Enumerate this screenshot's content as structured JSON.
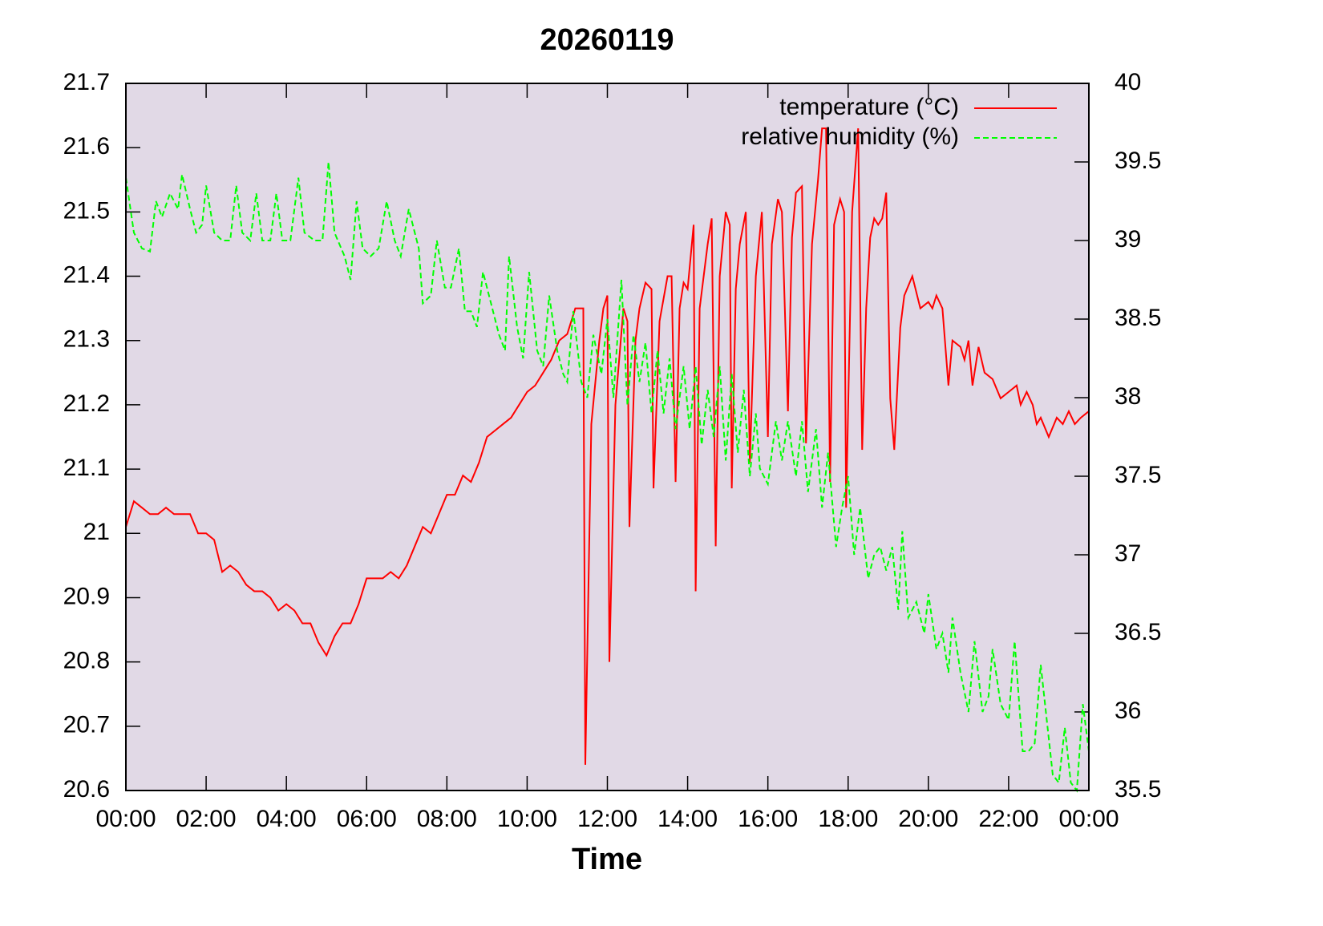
{
  "chart_data": {
    "type": "line",
    "title": "20260119",
    "x_label": "Time",
    "xlim": [
      0,
      24
    ],
    "xticks": [
      {
        "value": 0,
        "label": "00:00"
      },
      {
        "value": 2,
        "label": "02:00"
      },
      {
        "value": 4,
        "label": "04:00"
      },
      {
        "value": 6,
        "label": "06:00"
      },
      {
        "value": 8,
        "label": "08:00"
      },
      {
        "value": 10,
        "label": "10:00"
      },
      {
        "value": 12,
        "label": "12:00"
      },
      {
        "value": 14,
        "label": "14:00"
      },
      {
        "value": 16,
        "label": "16:00"
      },
      {
        "value": 18,
        "label": "18:00"
      },
      {
        "value": 20,
        "label": "20:00"
      },
      {
        "value": 22,
        "label": "22:00"
      },
      {
        "value": 24,
        "label": "00:00"
      }
    ],
    "ylim": [
      20.6,
      21.7
    ],
    "yticks": [
      20.6,
      20.7,
      20.8,
      20.9,
      21,
      21.1,
      21.2,
      21.3,
      21.4,
      21.5,
      21.6,
      21.7
    ],
    "y2lim": [
      35.5,
      40
    ],
    "y2ticks": [
      35.5,
      36,
      36.5,
      37,
      37.5,
      38,
      38.5,
      39,
      39.5,
      40
    ],
    "background": "#e1d9e6",
    "legend": "top-right",
    "series": [
      {
        "name": "temperature (°C)",
        "color": "#ff0000",
        "line_style": "solid",
        "x": [
          0,
          0.2,
          0.4,
          0.6,
          0.8,
          1.0,
          1.2,
          1.4,
          1.6,
          1.8,
          2.0,
          2.2,
          2.4,
          2.6,
          2.8,
          3.0,
          3.2,
          3.4,
          3.6,
          3.8,
          4.0,
          4.2,
          4.4,
          4.6,
          4.8,
          5.0,
          5.2,
          5.4,
          5.6,
          5.8,
          6.0,
          6.2,
          6.4,
          6.6,
          6.8,
          7.0,
          7.2,
          7.4,
          7.6,
          7.8,
          8.0,
          8.2,
          8.4,
          8.6,
          8.8,
          9.0,
          9.2,
          9.4,
          9.6,
          9.8,
          10.0,
          10.2,
          10.4,
          10.6,
          10.8,
          11.0,
          11.2,
          11.4,
          11.45,
          11.6,
          11.8,
          11.9,
          12.0,
          12.05,
          12.2,
          12.4,
          12.5,
          12.55,
          12.7,
          12.8,
          12.95,
          13.1,
          13.15,
          13.3,
          13.5,
          13.6,
          13.7,
          13.8,
          13.9,
          14.0,
          14.15,
          14.2,
          14.3,
          14.4,
          14.5,
          14.6,
          14.7,
          14.8,
          14.95,
          15.05,
          15.1,
          15.2,
          15.3,
          15.45,
          15.55,
          15.7,
          15.85,
          16.0,
          16.1,
          16.25,
          16.35,
          16.5,
          16.6,
          16.7,
          16.85,
          16.95,
          17.1,
          17.25,
          17.35,
          17.45,
          17.55,
          17.65,
          17.8,
          17.9,
          17.95,
          18.1,
          18.25,
          18.35,
          18.45,
          18.55,
          18.65,
          18.75,
          18.85,
          18.95,
          19.05,
          19.15,
          19.3,
          19.4,
          19.6,
          19.8,
          20.0,
          20.1,
          20.2,
          20.35,
          20.5,
          20.6,
          20.8,
          20.9,
          21.0,
          21.1,
          21.25,
          21.4,
          21.6,
          21.8,
          22.0,
          22.2,
          22.3,
          22.45,
          22.6,
          22.7,
          22.8,
          23.0,
          23.2,
          23.35,
          23.5,
          23.65,
          23.8,
          24.0
        ],
        "values": [
          21.01,
          21.05,
          21.04,
          21.03,
          21.03,
          21.04,
          21.03,
          21.03,
          21.03,
          21.0,
          21.0,
          20.99,
          20.94,
          20.95,
          20.94,
          20.92,
          20.91,
          20.91,
          20.9,
          20.88,
          20.89,
          20.88,
          20.86,
          20.86,
          20.83,
          20.81,
          20.84,
          20.86,
          20.86,
          20.89,
          20.93,
          20.93,
          20.93,
          20.94,
          20.93,
          20.95,
          20.98,
          21.01,
          21.0,
          21.03,
          21.06,
          21.06,
          21.09,
          21.08,
          21.11,
          21.15,
          21.16,
          21.17,
          21.18,
          21.2,
          21.22,
          21.23,
          21.25,
          21.27,
          21.3,
          21.31,
          21.35,
          21.35,
          20.64,
          21.17,
          21.3,
          21.35,
          21.37,
          20.8,
          21.2,
          21.35,
          21.33,
          21.01,
          21.3,
          21.35,
          21.39,
          21.38,
          21.07,
          21.33,
          21.4,
          21.4,
          21.08,
          21.35,
          21.39,
          21.38,
          21.48,
          20.91,
          21.35,
          21.4,
          21.45,
          21.49,
          20.98,
          21.4,
          21.5,
          21.48,
          21.07,
          21.38,
          21.45,
          21.5,
          21.11,
          21.4,
          21.5,
          21.15,
          21.45,
          21.52,
          21.5,
          21.19,
          21.46,
          21.53,
          21.54,
          21.14,
          21.45,
          21.55,
          21.63,
          21.63,
          21.08,
          21.48,
          21.52,
          21.5,
          21.04,
          21.5,
          21.63,
          21.13,
          21.35,
          21.46,
          21.49,
          21.48,
          21.49,
          21.53,
          21.21,
          21.13,
          21.32,
          21.37,
          21.4,
          21.35,
          21.36,
          21.35,
          21.37,
          21.35,
          21.23,
          21.3,
          21.29,
          21.27,
          21.3,
          21.23,
          21.29,
          21.25,
          21.24,
          21.21,
          21.22,
          21.23,
          21.2,
          21.22,
          21.2,
          21.17,
          21.18,
          21.15,
          21.18,
          21.17,
          21.19,
          21.17,
          21.18,
          21.19
        ]
      },
      {
        "name": "relative humidity (%)",
        "color": "#00ff00",
        "line_style": "dashed",
        "axis": "y2",
        "x": [
          0,
          0.2,
          0.4,
          0.6,
          0.75,
          0.9,
          1.1,
          1.3,
          1.4,
          1.6,
          1.75,
          1.9,
          2.0,
          2.2,
          2.4,
          2.6,
          2.75,
          2.9,
          3.1,
          3.25,
          3.4,
          3.6,
          3.75,
          3.9,
          4.1,
          4.3,
          4.45,
          4.7,
          4.9,
          5.05,
          5.2,
          5.45,
          5.6,
          5.75,
          5.9,
          6.1,
          6.3,
          6.5,
          6.7,
          6.85,
          7.05,
          7.3,
          7.4,
          7.6,
          7.75,
          7.95,
          8.1,
          8.3,
          8.45,
          8.6,
          8.75,
          8.9,
          9.1,
          9.3,
          9.45,
          9.55,
          9.75,
          9.9,
          10.05,
          10.25,
          10.4,
          10.55,
          10.75,
          10.9,
          11.0,
          11.15,
          11.35,
          11.5,
          11.65,
          11.85,
          12.0,
          12.15,
          12.35,
          12.5,
          12.65,
          12.8,
          12.95,
          13.1,
          13.25,
          13.4,
          13.55,
          13.7,
          13.9,
          14.05,
          14.2,
          14.35,
          14.5,
          14.65,
          14.8,
          14.95,
          15.1,
          15.25,
          15.4,
          15.55,
          15.7,
          15.8,
          16.0,
          16.2,
          16.35,
          16.5,
          16.7,
          16.85,
          17.0,
          17.2,
          17.35,
          17.5,
          17.7,
          17.85,
          18.0,
          18.15,
          18.3,
          18.5,
          18.65,
          18.8,
          18.95,
          19.1,
          19.25,
          19.35,
          19.5,
          19.7,
          19.9,
          20.0,
          20.2,
          20.35,
          20.5,
          20.6,
          20.8,
          21.0,
          21.15,
          21.35,
          21.5,
          21.6,
          21.8,
          22.0,
          22.15,
          22.35,
          22.5,
          22.65,
          22.8,
          22.95,
          23.1,
          23.25,
          23.4,
          23.55,
          23.7,
          23.85,
          24.0
        ],
        "values": [
          39.4,
          39.05,
          38.95,
          38.93,
          39.25,
          39.15,
          39.3,
          39.2,
          39.42,
          39.2,
          39.05,
          39.1,
          39.35,
          39.05,
          39.0,
          39.0,
          39.35,
          39.05,
          39.0,
          39.3,
          39.0,
          39.0,
          39.3,
          39.0,
          39.0,
          39.4,
          39.05,
          39.0,
          39.0,
          39.5,
          39.05,
          38.9,
          38.75,
          39.25,
          38.95,
          38.9,
          38.95,
          39.25,
          39.0,
          38.9,
          39.2,
          38.95,
          38.6,
          38.65,
          39.0,
          38.7,
          38.7,
          38.95,
          38.55,
          38.55,
          38.45,
          38.8,
          38.6,
          38.4,
          38.3,
          38.9,
          38.45,
          38.25,
          38.8,
          38.3,
          38.2,
          38.65,
          38.3,
          38.15,
          38.1,
          38.55,
          38.1,
          38.0,
          38.4,
          38.15,
          38.5,
          38.0,
          38.75,
          37.95,
          38.4,
          38.1,
          38.35,
          37.9,
          38.3,
          37.9,
          38.25,
          37.8,
          38.2,
          37.8,
          38.2,
          37.7,
          38.05,
          37.75,
          38.2,
          37.6,
          38.15,
          37.65,
          38.05,
          37.5,
          37.9,
          37.55,
          37.45,
          37.85,
          37.6,
          37.85,
          37.5,
          37.85,
          37.4,
          37.8,
          37.3,
          37.65,
          37.05,
          37.3,
          37.5,
          37.0,
          37.3,
          36.85,
          37.0,
          37.05,
          36.9,
          37.05,
          36.65,
          37.15,
          36.6,
          36.7,
          36.5,
          36.75,
          36.4,
          36.5,
          36.25,
          36.6,
          36.25,
          36.0,
          36.45,
          36.0,
          36.1,
          36.4,
          36.05,
          35.95,
          36.45,
          35.75,
          35.75,
          35.8,
          36.3,
          35.95,
          35.6,
          35.55,
          35.9,
          35.55,
          35.5,
          36.05,
          35.75
        ]
      }
    ]
  }
}
